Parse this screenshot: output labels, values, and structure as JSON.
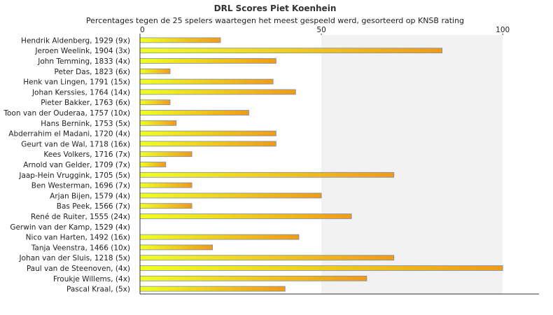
{
  "chart_data": {
    "type": "bar",
    "orientation": "horizontal",
    "title": "DRL Scores Piet Koenhein",
    "subtitle": "Percentages tegen de 25 spelers waartegen het meest gespeeld werd, gesorteerd op KNSB rating",
    "categories": [
      "Hendrik Aldenberg, 1929 (9x)",
      "Jeroen Weelink, 1904 (3x)",
      "John Temming, 1833 (4x)",
      "Peter Das, 1823 (6x)",
      "Henk van Lingen, 1791 (15x)",
      "Johan Kerssies, 1764 (14x)",
      "Pieter Bakker, 1763 (6x)",
      "Toon van der Ouderaa, 1757 (10x)",
      "Hans Bernink, 1753 (5x)",
      "Abderrahim el Madani, 1720 (4x)",
      "Geurt van de Wal, 1718 (16x)",
      "Kees Volkers, 1716 (7x)",
      "Arnold van Gelder, 1709 (7x)",
      "Jaap-Hein Vruggink, 1705 (5x)",
      "Ben Westerman, 1696 (7x)",
      "Arjan Bijen, 1579 (4x)",
      "Bas Peek, 1566 (7x)",
      "René de Ruiter, 1555 (24x)",
      "Gerwin van der Kamp, 1529 (4x)",
      "Nico van Harten, 1492 (16x)",
      "Tanja Veenstra, 1466 (10x)",
      "Johan van der Sluis, 1218 (5x)",
      "Paul van de Steenoven,  (4x)",
      "Froukje Willems,  (4x)",
      "Pascal Kraal,  (5x)"
    ],
    "values": [
      22.2,
      83.3,
      37.5,
      8.3,
      36.7,
      42.9,
      8.3,
      30,
      10,
      37.5,
      37.5,
      14.3,
      7.1,
      70,
      14.3,
      50,
      14.3,
      58.3,
      0,
      43.8,
      20,
      70,
      100,
      62.5,
      40
    ],
    "xlim": [
      0,
      110
    ],
    "ticks": [
      "0",
      "50",
      "100"
    ],
    "tick_values": [
      0,
      50,
      100
    ],
    "grid": "vertical bands",
    "legend": "none",
    "colors": {
      "bar_start": "#f0ff22",
      "bar_end": "#f09a18",
      "bar_edge": "#7a8fb0",
      "band_light": "#ffffff",
      "band_shade": "#f2f2f2",
      "axis": "#333333"
    }
  }
}
